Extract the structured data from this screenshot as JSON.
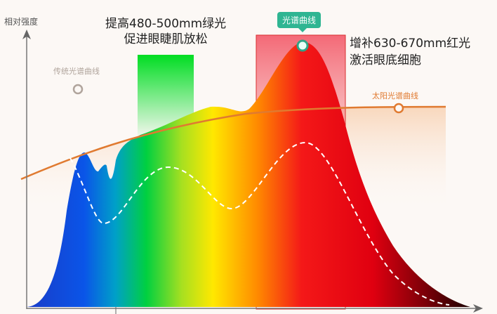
{
  "y_axis_label": "相对强度",
  "green_band": {
    "line1": "提高480-500mm绿光",
    "line2": "促进眼睫肌放松",
    "color": "#00dd22"
  },
  "red_band": {
    "line1": "增补630-670mm红光",
    "line2": "激活眼底细胞",
    "color": "#f04050"
  },
  "legend": {
    "traditional": "传统光谱曲线",
    "sun": "太阳光谱曲线",
    "product": "光谱曲线"
  },
  "colors": {
    "sun": "#e07a30",
    "product_tag": "#2fb592",
    "traditional": "#b0a49c"
  }
}
